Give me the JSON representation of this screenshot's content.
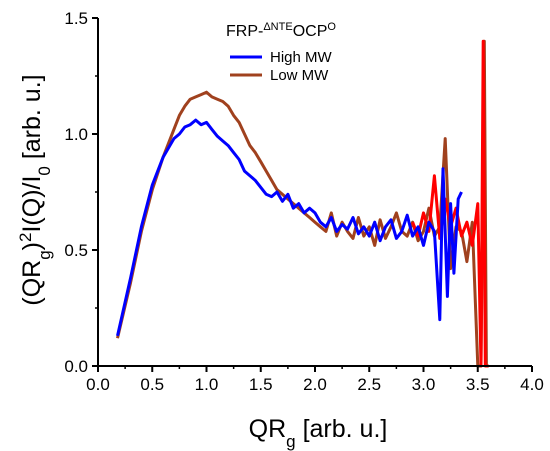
{
  "chart_data": {
    "type": "line",
    "title": "",
    "legend_title": {
      "base": "FRP-",
      "sup1": "ΔNTE",
      "mid": "OCP",
      "sup2": "O"
    },
    "xlabel": {
      "main": "QR",
      "sub": "g",
      "unit": " [arb. u.]"
    },
    "ylabel": {
      "open": "(QR",
      "sub1": "g",
      "close": ")",
      "sup": "2",
      "mid": "I(Q)/I",
      "sub2": "0",
      "unit": " [arb. u.]"
    },
    "xlim": [
      0.0,
      4.0
    ],
    "ylim": [
      0.0,
      1.5
    ],
    "xticks": [
      "0.0",
      "0.5",
      "1.0",
      "1.5",
      "2.0",
      "2.5",
      "3.0",
      "3.5",
      "4.0"
    ],
    "yticks": [
      "0.0",
      "0.5",
      "1.0",
      "1.5"
    ],
    "legend_position": "top-center",
    "grid": false,
    "series": [
      {
        "name": "High MW",
        "color": "#0000ff",
        "x": [
          0.18,
          0.3,
          0.4,
          0.5,
          0.6,
          0.7,
          0.75,
          0.8,
          0.85,
          0.9,
          0.95,
          1.0,
          1.05,
          1.1,
          1.15,
          1.2,
          1.25,
          1.3,
          1.35,
          1.4,
          1.45,
          1.5,
          1.55,
          1.6,
          1.65,
          1.7,
          1.75,
          1.8,
          1.85,
          1.9,
          1.95,
          2.0,
          2.05,
          2.1,
          2.15,
          2.2,
          2.25,
          2.3,
          2.35,
          2.4,
          2.45,
          2.5,
          2.55,
          2.6,
          2.65,
          2.7,
          2.75,
          2.8,
          2.85,
          2.9,
          2.95,
          3.0,
          3.05,
          3.1,
          3.15,
          3.18,
          3.22,
          3.25,
          3.28,
          3.32,
          3.35
        ],
        "y": [
          0.13,
          0.38,
          0.6,
          0.78,
          0.9,
          0.98,
          1.0,
          1.03,
          1.04,
          1.06,
          1.04,
          1.05,
          1.02,
          0.99,
          0.97,
          0.95,
          0.92,
          0.89,
          0.84,
          0.82,
          0.8,
          0.77,
          0.74,
          0.73,
          0.75,
          0.71,
          0.74,
          0.68,
          0.7,
          0.66,
          0.68,
          0.66,
          0.62,
          0.6,
          0.64,
          0.58,
          0.61,
          0.59,
          0.64,
          0.57,
          0.6,
          0.56,
          0.62,
          0.54,
          0.6,
          0.63,
          0.55,
          0.58,
          0.65,
          0.56,
          0.6,
          0.52,
          0.62,
          0.58,
          0.2,
          0.85,
          0.3,
          0.7,
          0.4,
          0.72,
          0.75
        ]
      },
      {
        "name": "Low MW",
        "color": "#a0411e",
        "x": [
          0.18,
          0.3,
          0.4,
          0.5,
          0.6,
          0.7,
          0.75,
          0.8,
          0.85,
          0.9,
          0.95,
          1.0,
          1.05,
          1.1,
          1.15,
          1.2,
          1.25,
          1.3,
          1.35,
          1.4,
          1.45,
          1.5,
          1.55,
          1.6,
          1.65,
          1.7,
          1.75,
          1.8,
          1.85,
          1.9,
          1.95,
          2.0,
          2.05,
          2.1,
          2.15,
          2.2,
          2.25,
          2.3,
          2.35,
          2.4,
          2.45,
          2.5,
          2.55,
          2.6,
          2.65,
          2.7,
          2.75,
          2.8,
          2.85,
          2.9,
          2.95,
          3.0,
          3.05,
          3.1,
          3.15,
          3.2,
          3.25,
          3.3,
          3.35,
          3.4,
          3.45,
          3.5,
          3.53,
          3.56,
          3.58,
          3.6
        ],
        "y": [
          0.12,
          0.36,
          0.58,
          0.76,
          0.9,
          1.02,
          1.08,
          1.12,
          1.15,
          1.16,
          1.17,
          1.18,
          1.16,
          1.15,
          1.14,
          1.12,
          1.08,
          1.05,
          1.0,
          0.95,
          0.92,
          0.88,
          0.84,
          0.8,
          0.76,
          0.74,
          0.72,
          0.7,
          0.68,
          0.66,
          0.64,
          0.62,
          0.6,
          0.58,
          0.66,
          0.56,
          0.62,
          0.58,
          0.55,
          0.64,
          0.56,
          0.6,
          0.52,
          0.63,
          0.55,
          0.6,
          0.66,
          0.58,
          0.56,
          0.62,
          0.54,
          0.58,
          0.68,
          0.56,
          0.6,
          0.98,
          0.42,
          0.6,
          0.58,
          0.45,
          0.62,
          0.0,
          0.0,
          1.4,
          0.0,
          0.0
        ]
      },
      {
        "name": "",
        "color": "#ff0000",
        "x": [
          2.9,
          2.95,
          3.0,
          3.05,
          3.1,
          3.15,
          3.2,
          3.25,
          3.3,
          3.35,
          3.4,
          3.45,
          3.5,
          3.53,
          3.55,
          3.57,
          3.6
        ],
        "y": [
          0.62,
          0.56,
          0.66,
          0.58,
          0.82,
          0.55,
          0.72,
          0.6,
          0.68,
          0.56,
          0.62,
          0.52,
          0.7,
          0.0,
          1.4,
          0.0,
          0.0
        ]
      }
    ]
  }
}
